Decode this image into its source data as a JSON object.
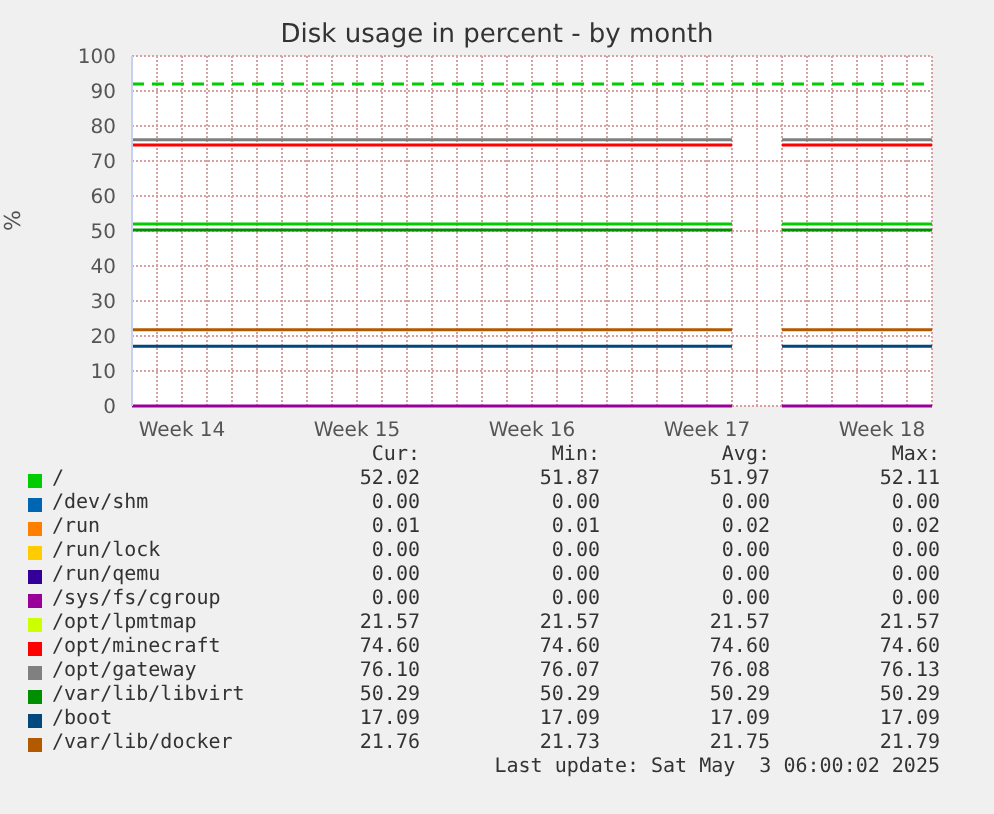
{
  "chart_data": {
    "type": "line",
    "title": "Disk usage in percent - by month",
    "ylabel": "%",
    "categories": [
      null,
      null,
      "Week 14",
      null,
      null,
      null,
      null,
      null,
      null,
      "Week 15",
      null,
      null,
      null,
      null,
      null,
      null,
      "Week 16",
      null,
      null,
      null,
      null,
      null,
      null,
      "Week 17",
      null,
      null,
      null,
      null,
      null,
      null,
      "Week 18",
      null,
      null
    ],
    "ylim": [
      0,
      100
    ],
    "yticks": [
      0,
      10,
      20,
      30,
      40,
      50,
      60,
      70,
      80,
      90,
      100
    ],
    "grid": true,
    "legend": "bottom",
    "marker": "none",
    "line_style": "solid",
    "series": [
      {
        "name": "/",
        "color": "#00cc00",
        "values": [
          52.02,
          52.02,
          52.02,
          52.02,
          52.02,
          52.02,
          52.02,
          52.02,
          52.02,
          52.02,
          52.02,
          52.02,
          52.02,
          52.02,
          52.02,
          52.02,
          52.02,
          52.02,
          52.02,
          52.02,
          52.02,
          52.02,
          52.02,
          52.02,
          52.02,
          null,
          52.02,
          52.02,
          52.02,
          52.02,
          52.02,
          52.02,
          52.02
        ]
      },
      {
        "name": "/dev/shm",
        "color": "#0066b3",
        "values": [
          null,
          null,
          null,
          null,
          null,
          null,
          null,
          null,
          null,
          null,
          null,
          null,
          null,
          null,
          null,
          null,
          null,
          null,
          null,
          null,
          null,
          null,
          null,
          null,
          null,
          null,
          null,
          null,
          null,
          null,
          null,
          null,
          null
        ]
      },
      {
        "name": "/run",
        "color": "#ff8000",
        "values": [
          null,
          null,
          null,
          null,
          null,
          null,
          null,
          null,
          null,
          null,
          null,
          null,
          null,
          null,
          null,
          null,
          null,
          null,
          null,
          null,
          null,
          null,
          null,
          null,
          null,
          null,
          null,
          null,
          null,
          null,
          null,
          null,
          null
        ]
      },
      {
        "name": "/run/lock",
        "color": "#ffcc00",
        "values": [
          null,
          null,
          null,
          null,
          null,
          null,
          null,
          null,
          null,
          null,
          null,
          null,
          null,
          null,
          null,
          null,
          null,
          null,
          null,
          null,
          null,
          null,
          null,
          null,
          null,
          null,
          null,
          null,
          null,
          null,
          null,
          null,
          null
        ]
      },
      {
        "name": "/run/qemu",
        "color": "#330099",
        "values": [
          null,
          null,
          null,
          null,
          null,
          null,
          null,
          null,
          null,
          null,
          null,
          null,
          null,
          null,
          null,
          null,
          null,
          null,
          null,
          null,
          null,
          null,
          null,
          null,
          null,
          null,
          null,
          null,
          null,
          null,
          null,
          null,
          null
        ]
      },
      {
        "name": "/sys/fs/cgroup",
        "color": "#990099",
        "values": [
          0,
          0,
          0,
          0,
          0,
          0,
          0,
          0,
          0,
          0,
          0,
          0,
          0,
          0,
          0,
          0,
          0,
          0,
          0,
          0,
          0,
          0,
          0,
          0,
          0,
          null,
          0,
          0,
          0,
          0,
          0,
          0,
          0
        ]
      },
      {
        "name": "/opt/lpmtmap",
        "color": "#ccff00",
        "values": [
          null,
          null,
          null,
          null,
          null,
          null,
          null,
          null,
          null,
          null,
          null,
          null,
          null,
          null,
          null,
          null,
          null,
          null,
          null,
          null,
          null,
          null,
          null,
          null,
          null,
          null,
          null,
          null,
          null,
          null,
          null,
          null,
          null
        ]
      },
      {
        "name": "/opt/minecraft",
        "color": "#ff0000",
        "values": [
          74.6,
          74.6,
          74.6,
          74.6,
          74.6,
          74.6,
          74.6,
          74.6,
          74.6,
          74.6,
          74.6,
          74.6,
          74.6,
          74.6,
          74.6,
          74.6,
          74.6,
          74.6,
          74.6,
          74.6,
          74.6,
          74.6,
          74.6,
          74.6,
          74.6,
          null,
          74.6,
          74.6,
          74.6,
          74.6,
          74.6,
          74.6,
          74.6
        ]
      },
      {
        "name": "/opt/gateway",
        "color": "#808080",
        "values": [
          76.1,
          76.1,
          76.1,
          76.1,
          76.1,
          76.1,
          76.1,
          76.1,
          76.1,
          76.1,
          76.1,
          76.1,
          76.1,
          76.1,
          76.1,
          76.1,
          76.1,
          76.1,
          76.1,
          76.1,
          76.1,
          76.1,
          76.1,
          76.1,
          76.1,
          null,
          76.1,
          76.1,
          76.1,
          76.1,
          76.1,
          76.1,
          76.1
        ]
      },
      {
        "name": "/var/lib/libvirt",
        "color": "#008f00",
        "values": [
          50.29,
          50.29,
          50.29,
          50.29,
          50.29,
          50.29,
          50.29,
          50.29,
          50.29,
          50.29,
          50.29,
          50.29,
          50.29,
          50.29,
          50.29,
          50.29,
          50.29,
          50.29,
          50.29,
          50.29,
          50.29,
          50.29,
          50.29,
          50.29,
          50.29,
          null,
          50.29,
          50.29,
          50.29,
          50.29,
          50.29,
          50.29,
          50.29
        ]
      },
      {
        "name": "/boot",
        "color": "#00487d",
        "values": [
          17.09,
          17.09,
          17.09,
          17.09,
          17.09,
          17.09,
          17.09,
          17.09,
          17.09,
          17.09,
          17.09,
          17.09,
          17.09,
          17.09,
          17.09,
          17.09,
          17.09,
          17.09,
          17.09,
          17.09,
          17.09,
          17.09,
          17.09,
          17.09,
          17.09,
          null,
          17.09,
          17.09,
          17.09,
          17.09,
          17.09,
          17.09,
          17.09
        ]
      },
      {
        "name": "/var/lib/docker",
        "color": "#b35a00",
        "values": [
          21.76,
          21.76,
          21.76,
          21.76,
          21.76,
          21.76,
          21.76,
          21.76,
          21.76,
          21.76,
          21.76,
          21.76,
          21.76,
          21.76,
          21.76,
          21.76,
          21.76,
          21.76,
          21.76,
          21.76,
          21.76,
          21.76,
          21.76,
          21.76,
          21.76,
          null,
          21.76,
          21.76,
          21.76,
          21.76,
          21.76,
          21.76,
          21.76
        ]
      }
    ],
    "ref_lines": [
      {
        "axis": "y",
        "value": 92,
        "label": null,
        "color": "#00cc00",
        "line_style": "dashed"
      }
    ],
    "annotations": [
      "Cur:",
      "Min:",
      "Avg:",
      "Max:",
      "52.02",
      "51.87",
      "51.97",
      "52.11",
      "0.00",
      "0.00",
      "0.00",
      "0.00",
      "0.01",
      "0.01",
      "0.02",
      "0.02",
      "0.00",
      "0.00",
      "0.00",
      "0.00",
      "0.00",
      "0.00",
      "0.00",
      "0.00",
      "0.00",
      "0.00",
      "0.00",
      "0.00",
      "21.57",
      "21.57",
      "21.57",
      "21.57",
      "74.60",
      "74.60",
      "74.60",
      "74.60",
      "76.10",
      "76.07",
      "76.08",
      "76.13",
      "50.29",
      "50.29",
      "50.29",
      "50.29",
      "17.09",
      "17.09",
      "17.09",
      "17.09",
      "21.76",
      "21.73",
      "21.75",
      "21.79",
      "Last update: Sat May  3 06:00:02 2025"
    ]
  }
}
